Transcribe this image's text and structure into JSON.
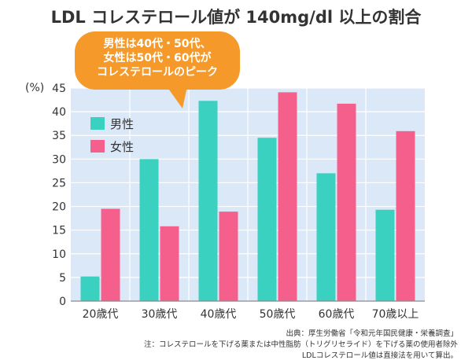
{
  "chart_data": {
    "type": "bar",
    "title": "LDL コレステロール値が 140mg/dl 以上の割合",
    "y_unit": "(%)",
    "ylim": [
      0,
      45
    ],
    "yticks": [
      0,
      5,
      10,
      15,
      20,
      25,
      30,
      35,
      40,
      45
    ],
    "grid": true,
    "legend_position": "top-left",
    "categories": [
      "20歳代",
      "30歳代",
      "40歳代",
      "50歳代",
      "60歳代",
      "70歳以上"
    ],
    "series": [
      {
        "name": "男性",
        "color": "#3ad1c0",
        "values": [
          5.2,
          30.0,
          42.3,
          34.5,
          27.0,
          19.3
        ]
      },
      {
        "name": "女性",
        "color": "#f55f8c",
        "values": [
          19.5,
          15.8,
          18.9,
          44.1,
          41.7,
          35.9
        ]
      }
    ],
    "callout": [
      "男性は40代・50代、",
      "女性は50代・60代が",
      "コレステロールのピーク"
    ],
    "callout_color": "#f59a2a"
  },
  "notes": [
    "出典：厚生労働省「令和元年国民健康・栄養調査」",
    "注：コレステロールを下げる薬または中性脂肪（トリグリセライド）を下げる薬の使用者除外",
    "LDLコレステロール値は直接法を用いて算出。"
  ]
}
